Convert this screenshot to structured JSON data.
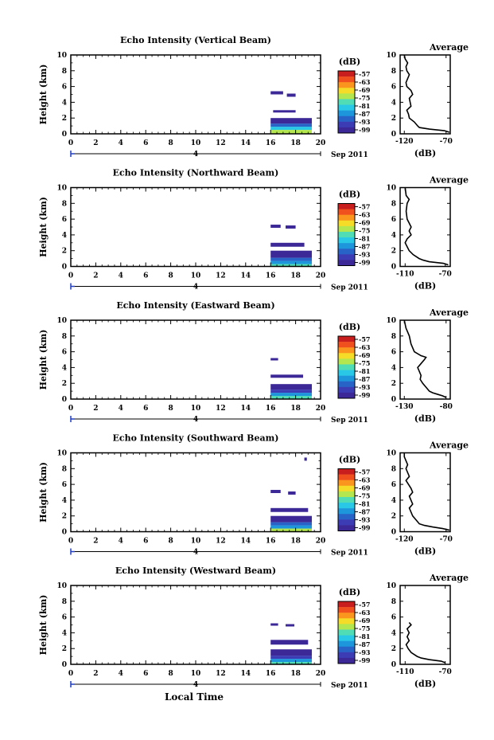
{
  "figure": {
    "xlabel": "Local Time",
    "date_label": "Sep 2011",
    "day_label": "4",
    "colorbar_unit": "(dB)",
    "colorbar_ticks": [
      "-57",
      "-63",
      "-69",
      "-75",
      "-81",
      "-87",
      "-93",
      "-99"
    ],
    "colorbar_colors": [
      "#c81e1e",
      "#f0501e",
      "#fa961e",
      "#f5dc28",
      "#b4e650",
      "#50dcb4",
      "#28c8e6",
      "#1e96dc",
      "#2864c8",
      "#3c3cb4",
      "#3c2896"
    ],
    "avg_title": "Average",
    "avg_xlabel": "(dB)",
    "ylabel": "Height (km)"
  },
  "chart_data": [
    {
      "type": "heatmap",
      "title": "Echo Intensity (Vertical Beam)",
      "ylabel": "Height (km)",
      "xlim": [
        0,
        20
      ],
      "ylim": [
        0,
        10
      ],
      "xticks": [
        "0",
        "2",
        "4",
        "6",
        "8",
        "10",
        "12",
        "14",
        "16",
        "18",
        "20"
      ],
      "yticks": [
        "0",
        "2",
        "4",
        "6",
        "8",
        "10"
      ],
      "data_time_range": [
        16,
        19.3
      ],
      "blocks": [
        {
          "t0": 16.0,
          "t1": 19.3,
          "h0": 0.0,
          "h1": 0.5,
          "db": -72
        },
        {
          "t0": 16.0,
          "t1": 19.3,
          "h0": 0.5,
          "h1": 0.9,
          "db": -84
        },
        {
          "t0": 16.0,
          "t1": 19.3,
          "h0": 0.9,
          "h1": 1.3,
          "db": -90
        },
        {
          "t0": 16.0,
          "t1": 19.3,
          "h0": 1.3,
          "h1": 2.0,
          "db": -97
        },
        {
          "t0": 16.2,
          "t1": 18.0,
          "h0": 2.7,
          "h1": 3.0,
          "db": -99
        },
        {
          "t0": 16.0,
          "t1": 17.0,
          "h0": 5.0,
          "h1": 5.4,
          "db": -99
        },
        {
          "t0": 17.3,
          "t1": 18.0,
          "h0": 4.7,
          "h1": 5.1,
          "db": -99
        }
      ],
      "avg": {
        "xticks": [
          "-120",
          "-70"
        ],
        "xlim": [
          -125,
          -65
        ],
        "profile": [
          [
            0.2,
            -66
          ],
          [
            0.4,
            -72
          ],
          [
            0.6,
            -90
          ],
          [
            0.8,
            -102
          ],
          [
            1.0,
            -104
          ],
          [
            1.5,
            -108
          ],
          [
            2.0,
            -114
          ],
          [
            2.5,
            -115
          ],
          [
            3.0,
            -117
          ],
          [
            3.5,
            -112
          ],
          [
            4.0,
            -113
          ],
          [
            4.5,
            -114
          ],
          [
            5.0,
            -110
          ],
          [
            5.5,
            -112
          ],
          [
            6.0,
            -117
          ],
          [
            6.5,
            -118
          ],
          [
            7.0,
            -116
          ],
          [
            7.5,
            -114
          ],
          [
            8.0,
            -117
          ],
          [
            8.5,
            -118
          ],
          [
            9.0,
            -116
          ],
          [
            9.5,
            -119
          ],
          [
            10.0,
            -120
          ]
        ],
        "xlabel": "(dB)",
        "title": "Average"
      }
    },
    {
      "type": "heatmap",
      "title": "Echo Intensity (Northward Beam)",
      "ylabel": "Height (km)",
      "xlim": [
        0,
        20
      ],
      "ylim": [
        0,
        10
      ],
      "xticks": [
        "0",
        "2",
        "4",
        "6",
        "8",
        "10",
        "12",
        "14",
        "16",
        "18",
        "20"
      ],
      "yticks": [
        "0",
        "2",
        "4",
        "6",
        "8",
        "10"
      ],
      "data_time_range": [
        16,
        19.3
      ],
      "blocks": [
        {
          "t0": 16.0,
          "t1": 19.3,
          "h0": 0.0,
          "h1": 0.3,
          "db": -78
        },
        {
          "t0": 16.0,
          "t1": 19.3,
          "h0": 0.3,
          "h1": 0.7,
          "db": -86
        },
        {
          "t0": 16.0,
          "t1": 19.3,
          "h0": 0.7,
          "h1": 1.1,
          "db": -92
        },
        {
          "t0": 16.0,
          "t1": 19.3,
          "h0": 1.1,
          "h1": 2.0,
          "db": -98
        },
        {
          "t0": 16.0,
          "t1": 18.7,
          "h0": 2.5,
          "h1": 3.0,
          "db": -99
        },
        {
          "t0": 16.0,
          "t1": 16.8,
          "h0": 4.9,
          "h1": 5.3,
          "db": -99
        },
        {
          "t0": 17.2,
          "t1": 18.0,
          "h0": 4.8,
          "h1": 5.2,
          "db": -99
        }
      ],
      "avg": {
        "xticks": [
          "-110",
          "-70"
        ],
        "xlim": [
          -115,
          -65
        ],
        "profile": [
          [
            0.2,
            -67
          ],
          [
            0.4,
            -72
          ],
          [
            0.6,
            -86
          ],
          [
            0.8,
            -92
          ],
          [
            1.0,
            -96
          ],
          [
            1.5,
            -102
          ],
          [
            2.0,
            -106
          ],
          [
            2.5,
            -108
          ],
          [
            3.0,
            -110
          ],
          [
            3.5,
            -108
          ],
          [
            4.0,
            -104
          ],
          [
            4.5,
            -106
          ],
          [
            5.0,
            -104
          ],
          [
            5.5,
            -106
          ],
          [
            6.0,
            -108
          ],
          [
            7.0,
            -109
          ],
          [
            8.0,
            -108
          ],
          [
            8.5,
            -106
          ],
          [
            9.0,
            -109
          ],
          [
            10.0,
            -110
          ]
        ],
        "xlabel": "(dB)",
        "title": "Average"
      }
    },
    {
      "type": "heatmap",
      "title": "Echo Intensity (Eastward Beam)",
      "ylabel": "Height (km)",
      "xlim": [
        0,
        20
      ],
      "ylim": [
        0,
        10
      ],
      "xticks": [
        "0",
        "2",
        "4",
        "6",
        "8",
        "10",
        "12",
        "14",
        "16",
        "18",
        "20"
      ],
      "yticks": [
        "0",
        "2",
        "4",
        "6",
        "8",
        "10"
      ],
      "data_time_range": [
        16,
        19.3
      ],
      "blocks": [
        {
          "t0": 16.0,
          "t1": 19.3,
          "h0": 0.0,
          "h1": 0.4,
          "db": -80
        },
        {
          "t0": 16.0,
          "t1": 19.3,
          "h0": 0.4,
          "h1": 0.8,
          "db": -88
        },
        {
          "t0": 16.0,
          "t1": 19.3,
          "h0": 0.8,
          "h1": 1.2,
          "db": -93
        },
        {
          "t0": 16.0,
          "t1": 19.3,
          "h0": 1.2,
          "h1": 1.9,
          "db": -98
        },
        {
          "t0": 16.0,
          "t1": 18.6,
          "h0": 2.7,
          "h1": 3.1,
          "db": -99
        },
        {
          "t0": 16.0,
          "t1": 16.6,
          "h0": 4.9,
          "h1": 5.2,
          "db": -99
        }
      ],
      "avg": {
        "xticks": [
          "-130",
          "-80"
        ],
        "xlim": [
          -135,
          -75
        ],
        "profile": [
          [
            0.2,
            -80
          ],
          [
            0.4,
            -84
          ],
          [
            0.6,
            -90
          ],
          [
            0.8,
            -96
          ],
          [
            1.0,
            -100
          ],
          [
            1.5,
            -104
          ],
          [
            2.0,
            -108
          ],
          [
            2.5,
            -111
          ],
          [
            3.0,
            -110
          ],
          [
            3.5,
            -112
          ],
          [
            4.0,
            -114
          ],
          [
            4.5,
            -110
          ],
          [
            5.0,
            -106
          ],
          [
            5.3,
            -104
          ],
          [
            5.5,
            -110
          ],
          [
            6.0,
            -118
          ],
          [
            7.0,
            -122
          ],
          [
            8.0,
            -124
          ],
          [
            8.5,
            -126
          ],
          [
            9.0,
            -128
          ],
          [
            10.0,
            -130
          ]
        ],
        "xlabel": "(dB)",
        "title": "Average"
      }
    },
    {
      "type": "heatmap",
      "title": "Echo Intensity (Southward Beam)",
      "ylabel": "Height (km)",
      "xlim": [
        0,
        20
      ],
      "ylim": [
        0,
        10
      ],
      "xticks": [
        "0",
        "2",
        "4",
        "6",
        "8",
        "10",
        "12",
        "14",
        "16",
        "18",
        "20"
      ],
      "yticks": [
        "0",
        "2",
        "4",
        "6",
        "8",
        "10"
      ],
      "data_time_range": [
        16,
        19.3
      ],
      "blocks": [
        {
          "t0": 16.0,
          "t1": 19.3,
          "h0": 0.0,
          "h1": 0.4,
          "db": -74
        },
        {
          "t0": 16.0,
          "t1": 19.3,
          "h0": 0.4,
          "h1": 0.8,
          "db": -85
        },
        {
          "t0": 16.0,
          "t1": 19.3,
          "h0": 0.8,
          "h1": 1.2,
          "db": -91
        },
        {
          "t0": 16.0,
          "t1": 19.3,
          "h0": 1.2,
          "h1": 2.0,
          "db": -97
        },
        {
          "t0": 16.0,
          "t1": 19.0,
          "h0": 2.5,
          "h1": 3.0,
          "db": -99
        },
        {
          "t0": 16.0,
          "t1": 16.8,
          "h0": 4.9,
          "h1": 5.3,
          "db": -99
        },
        {
          "t0": 17.4,
          "t1": 18.0,
          "h0": 4.7,
          "h1": 5.1,
          "db": -99
        },
        {
          "t0": 18.7,
          "t1": 18.9,
          "h0": 9.0,
          "h1": 9.4,
          "db": -99
        }
      ],
      "avg": {
        "xticks": [
          "-120",
          "-70"
        ],
        "xlim": [
          -125,
          -65
        ],
        "profile": [
          [
            0.2,
            -66
          ],
          [
            0.4,
            -74
          ],
          [
            0.6,
            -86
          ],
          [
            0.8,
            -96
          ],
          [
            1.0,
            -102
          ],
          [
            1.5,
            -106
          ],
          [
            2.0,
            -110
          ],
          [
            2.5,
            -112
          ],
          [
            3.0,
            -114
          ],
          [
            3.5,
            -110
          ],
          [
            4.0,
            -112
          ],
          [
            4.5,
            -114
          ],
          [
            5.0,
            -110
          ],
          [
            5.5,
            -112
          ],
          [
            6.0,
            -115
          ],
          [
            6.5,
            -118
          ],
          [
            7.0,
            -114
          ],
          [
            7.5,
            -116
          ],
          [
            8.0,
            -118
          ],
          [
            8.5,
            -116
          ],
          [
            9.0,
            -118
          ],
          [
            9.5,
            -120
          ],
          [
            10.0,
            -120
          ]
        ],
        "xlabel": "(dB)",
        "title": "Average"
      }
    },
    {
      "type": "heatmap",
      "title": "Echo Intensity (Westward Beam)",
      "ylabel": "Height (km)",
      "xlim": [
        0,
        20
      ],
      "ylim": [
        0,
        10
      ],
      "xticks": [
        "0",
        "2",
        "4",
        "6",
        "8",
        "10",
        "12",
        "14",
        "16",
        "18",
        "20"
      ],
      "yticks": [
        "0",
        "2",
        "4",
        "6",
        "8",
        "10"
      ],
      "data_time_range": [
        16,
        19.3
      ],
      "blocks": [
        {
          "t0": 16.0,
          "t1": 19.3,
          "h0": 0.0,
          "h1": 0.3,
          "db": -80
        },
        {
          "t0": 16.0,
          "t1": 19.3,
          "h0": 0.3,
          "h1": 0.7,
          "db": -88
        },
        {
          "t0": 16.0,
          "t1": 19.3,
          "h0": 0.7,
          "h1": 1.1,
          "db": -93
        },
        {
          "t0": 16.0,
          "t1": 19.3,
          "h0": 1.1,
          "h1": 1.9,
          "db": -98
        },
        {
          "t0": 16.0,
          "t1": 19.0,
          "h0": 2.5,
          "h1": 3.1,
          "db": -99
        },
        {
          "t0": 16.0,
          "t1": 16.6,
          "h0": 4.9,
          "h1": 5.2,
          "db": -99
        },
        {
          "t0": 17.2,
          "t1": 17.9,
          "h0": 4.8,
          "h1": 5.1,
          "db": -99
        }
      ],
      "avg": {
        "xticks": [
          "-110",
          "-70"
        ],
        "xlim": [
          -115,
          -65
        ],
        "profile": [
          [
            0.2,
            -70
          ],
          [
            0.4,
            -74
          ],
          [
            0.6,
            -86
          ],
          [
            0.8,
            -94
          ],
          [
            1.0,
            -98
          ],
          [
            1.5,
            -104
          ],
          [
            2.0,
            -107
          ],
          [
            2.5,
            -109
          ],
          [
            3.0,
            -106
          ],
          [
            3.5,
            -108
          ],
          [
            4.0,
            -106
          ],
          [
            4.5,
            -108
          ],
          [
            5.0,
            -104
          ],
          [
            5.3,
            -106
          ]
        ],
        "xlabel": "(dB)",
        "title": "Average"
      }
    }
  ]
}
